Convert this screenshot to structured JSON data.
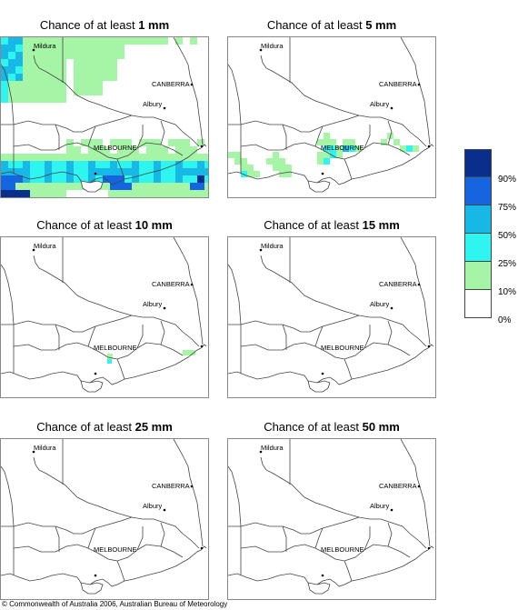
{
  "panels": [
    {
      "prefix": "Chance of at least ",
      "amount": "1 mm"
    },
    {
      "prefix": "Chance of at least ",
      "amount": "5 mm"
    },
    {
      "prefix": "Chance of at least ",
      "amount": "10 mm"
    },
    {
      "prefix": "Chance of at least ",
      "amount": "15 mm"
    },
    {
      "prefix": "Chance of at least ",
      "amount": "25 mm"
    },
    {
      "prefix": "Chance of at least ",
      "amount": "50 mm"
    }
  ],
  "places": {
    "mildura": "Mildura",
    "canberra": "CANBERRA",
    "albury": "Albury",
    "melbourne": "MELBOURNE"
  },
  "legend": {
    "colors": [
      "#0a2e8c",
      "#1565e0",
      "#17b7e6",
      "#2ef5f0",
      "#a6f5a6",
      "#ffffff"
    ],
    "labels": [
      "90%",
      "75%",
      "50%",
      "25%",
      "10%",
      "0%"
    ]
  },
  "footer": "© Commonwealth of Australia 2006, Australian Bureau of Meteorology"
}
